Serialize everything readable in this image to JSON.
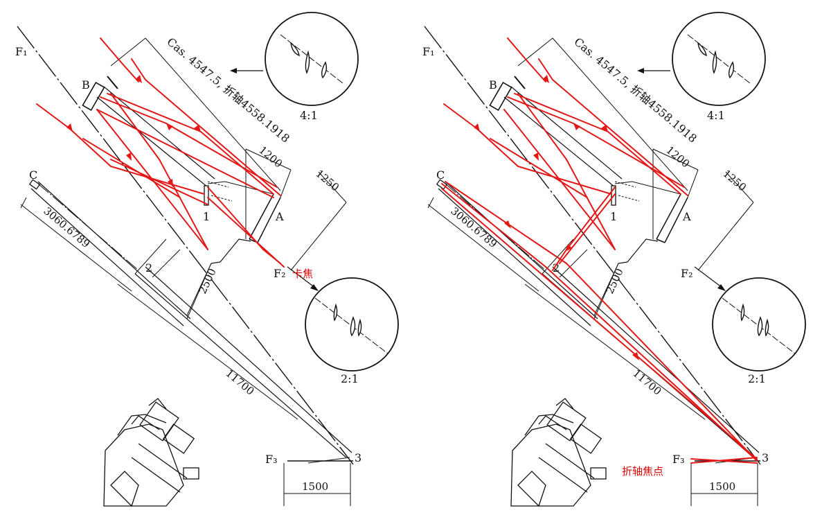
{
  "panels": [
    {
      "id": "left",
      "labels": {
        "f1": "F₁",
        "f2": "F₂",
        "f3": "F₃",
        "b": "B",
        "c": "C",
        "a": "A",
        "n1": "1",
        "n2": "2",
        "n3": "3",
        "dim_cas": "Cas. 4547.5, 折轴4558.1918",
        "dim_1200": "1200",
        "dim_1250": "1250",
        "dim_2500": "2500",
        "dim_3060": "3060.6789",
        "dim_11700": "11700",
        "dim_1500": "1500",
        "scale_top": "4:1",
        "scale_bottom": "2:1",
        "annotation": "卡焦"
      }
    },
    {
      "id": "right",
      "labels": {
        "f1": "F₁",
        "f2": "F₂",
        "f3": "F₃",
        "b": "B",
        "c": "C",
        "a": "A",
        "n1": "1",
        "n2": "2",
        "n3": "3",
        "dim_cas": "Cas. 4547.5, 折轴4558.1918",
        "dim_1200": "1200",
        "dim_1250": "1250",
        "dim_2500": "2500",
        "dim_3060": "3060.6789",
        "dim_11700": "11700",
        "dim_1500": "1500",
        "scale_top": "4:1",
        "scale_bottom": "2:1",
        "annotation": "折轴焦点"
      }
    }
  ],
  "colors": {
    "ink": "#111111",
    "ray": "#e41616"
  }
}
